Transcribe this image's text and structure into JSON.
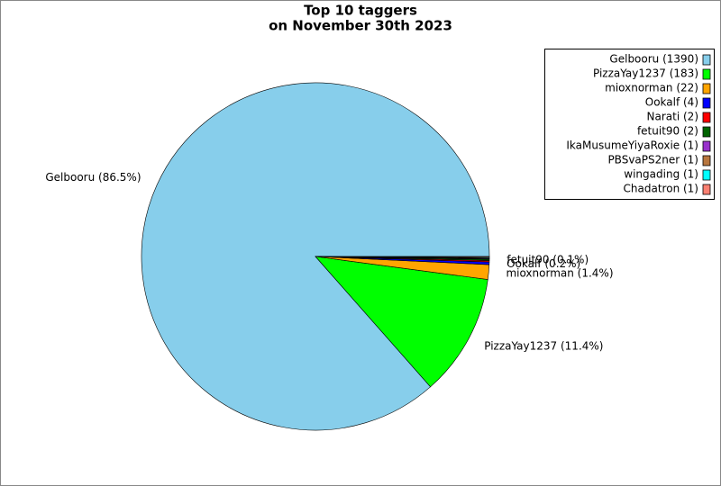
{
  "chart_data": {
    "type": "pie",
    "title": [
      "Top 10 taggers",
      "on November 30th 2023"
    ],
    "categories": [
      "Gelbooru (1390)",
      "PizzaYay1237 (183)",
      "mioxnorman (22)",
      "Ookalf (4)",
      "Narati (2)",
      "fetuit90 (2)",
      "IkaMusumeYiyaRoxie (1)",
      "PBSvaPS2ner (1)",
      "wingading (1)",
      "Chadatron (1)"
    ],
    "values": [
      1390,
      183,
      22,
      4,
      2,
      2,
      1,
      1,
      1,
      1
    ],
    "slice_labels": [
      "Gelbooru (86.5%)",
      "PizzaYay1237 (11.4%)",
      "mioxnorman (1.4%)",
      "Ookalf (0.2%)",
      null,
      "fetuit90 (0.1%)",
      null,
      null,
      null,
      null
    ],
    "colors": [
      "#87ceeb",
      "#00ff00",
      "#ffa500",
      "#0000ff",
      "#ff0000",
      "#006400",
      "#9932cc",
      "#b8763e",
      "#00ffff",
      "#fa8072"
    ],
    "legend": "upper right"
  }
}
